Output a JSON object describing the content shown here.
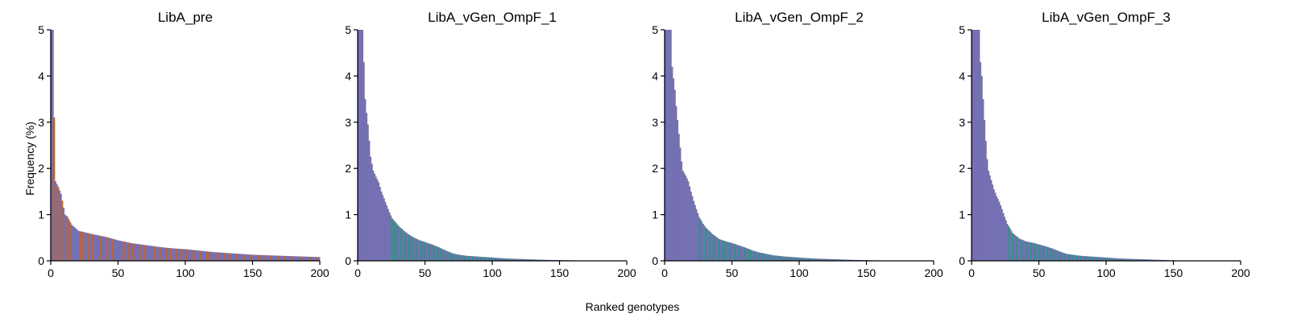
{
  "figure": {
    "xlabel": "Ranked genotypes",
    "ylabel": "Frequency (%)",
    "colors": {
      "default": "#7570b3",
      "highlight_pre": "#d95f02",
      "highlight_sel": "#1b9e77",
      "axis": "#000000"
    }
  },
  "chart_data": [
    {
      "type": "bar",
      "title": "LibA_pre",
      "xlim": [
        0,
        200
      ],
      "ylim": [
        0,
        5
      ],
      "xticks": [
        0,
        50,
        100,
        150,
        200
      ],
      "yticks": [
        0,
        1,
        2,
        3,
        4,
        5
      ],
      "highlight_color": "#d95f02",
      "n_genotypes": 200,
      "frequency_curve": [
        [
          0,
          5.0
        ],
        [
          1,
          5.0
        ],
        [
          2,
          3.1
        ],
        [
          3,
          1.72
        ],
        [
          5,
          1.6
        ],
        [
          7,
          1.45
        ],
        [
          10,
          1.0
        ],
        [
          12,
          0.95
        ],
        [
          15,
          0.78
        ],
        [
          20,
          0.65
        ],
        [
          30,
          0.58
        ],
        [
          40,
          0.52
        ],
        [
          50,
          0.44
        ],
        [
          60,
          0.38
        ],
        [
          70,
          0.34
        ],
        [
          80,
          0.3
        ],
        [
          90,
          0.27
        ],
        [
          100,
          0.25
        ],
        [
          110,
          0.22
        ],
        [
          120,
          0.19
        ],
        [
          130,
          0.17
        ],
        [
          140,
          0.15
        ],
        [
          150,
          0.13
        ],
        [
          160,
          0.12
        ],
        [
          170,
          0.11
        ],
        [
          180,
          0.1
        ],
        [
          190,
          0.09
        ],
        [
          200,
          0.08
        ]
      ],
      "highlight_ranks": [
        2,
        5,
        8,
        12,
        14,
        22,
        24,
        28,
        31,
        37,
        42,
        46,
        54,
        58,
        61,
        66,
        70,
        77,
        81,
        86,
        89,
        93,
        97,
        101,
        106,
        111,
        116,
        118,
        124,
        129,
        133,
        138,
        144,
        149,
        154,
        158,
        163,
        169,
        174,
        179,
        186,
        192,
        197
      ]
    },
    {
      "type": "bar",
      "title": "LibA_vGen_OmpF_1",
      "xlim": [
        0,
        200
      ],
      "ylim": [
        0,
        5
      ],
      "xticks": [
        0,
        50,
        100,
        150,
        200
      ],
      "yticks": [
        0,
        1,
        2,
        3,
        4,
        5
      ],
      "highlight_color": "#1b9e77",
      "n_genotypes": 165,
      "frequency_curve": [
        [
          0,
          5.0
        ],
        [
          3,
          5.0
        ],
        [
          4,
          4.3
        ],
        [
          5,
          3.5
        ],
        [
          6,
          3.2
        ],
        [
          7,
          2.95
        ],
        [
          8,
          2.6
        ],
        [
          9,
          2.25
        ],
        [
          10,
          2.1
        ],
        [
          11,
          1.95
        ],
        [
          13,
          1.82
        ],
        [
          15,
          1.7
        ],
        [
          17,
          1.5
        ],
        [
          19,
          1.35
        ],
        [
          21,
          1.2
        ],
        [
          23,
          1.05
        ],
        [
          25,
          0.92
        ],
        [
          28,
          0.82
        ],
        [
          30,
          0.75
        ],
        [
          35,
          0.62
        ],
        [
          40,
          0.52
        ],
        [
          45,
          0.45
        ],
        [
          50,
          0.4
        ],
        [
          55,
          0.35
        ],
        [
          60,
          0.29
        ],
        [
          65,
          0.22
        ],
        [
          70,
          0.16
        ],
        [
          75,
          0.13
        ],
        [
          80,
          0.11
        ],
        [
          90,
          0.09
        ],
        [
          100,
          0.07
        ],
        [
          110,
          0.05
        ],
        [
          120,
          0.04
        ],
        [
          130,
          0.03
        ],
        [
          140,
          0.02
        ],
        [
          150,
          0.015
        ],
        [
          160,
          0.01
        ],
        [
          165,
          0.005
        ]
      ],
      "highlight_ranks": [
        25,
        27,
        29,
        32,
        35,
        38,
        40,
        43,
        47,
        49,
        53,
        56,
        59,
        61,
        64,
        68,
        70,
        74,
        76,
        79,
        82,
        85,
        88,
        91,
        94,
        97,
        99,
        102,
        106,
        110,
        113,
        117,
        121,
        126,
        131,
        136,
        141,
        147,
        152
      ]
    },
    {
      "type": "bar",
      "title": "LibA_vGen_OmpF_2",
      "xlim": [
        0,
        200
      ],
      "ylim": [
        0,
        5
      ],
      "xticks": [
        0,
        50,
        100,
        150,
        200
      ],
      "yticks": [
        0,
        1,
        2,
        3,
        4,
        5
      ],
      "highlight_color": "#1b9e77",
      "n_genotypes": 160,
      "frequency_curve": [
        [
          0,
          5.0
        ],
        [
          4,
          5.0
        ],
        [
          5,
          4.2
        ],
        [
          6,
          3.95
        ],
        [
          7,
          3.7
        ],
        [
          8,
          3.35
        ],
        [
          9,
          3.05
        ],
        [
          10,
          2.75
        ],
        [
          11,
          2.45
        ],
        [
          12,
          2.15
        ],
        [
          13,
          1.95
        ],
        [
          15,
          1.85
        ],
        [
          17,
          1.72
        ],
        [
          19,
          1.5
        ],
        [
          21,
          1.3
        ],
        [
          23,
          1.12
        ],
        [
          25,
          0.95
        ],
        [
          28,
          0.8
        ],
        [
          30,
          0.72
        ],
        [
          35,
          0.58
        ],
        [
          40,
          0.47
        ],
        [
          45,
          0.42
        ],
        [
          50,
          0.38
        ],
        [
          55,
          0.33
        ],
        [
          60,
          0.28
        ],
        [
          65,
          0.22
        ],
        [
          70,
          0.18
        ],
        [
          75,
          0.15
        ],
        [
          80,
          0.12
        ],
        [
          90,
          0.09
        ],
        [
          100,
          0.07
        ],
        [
          110,
          0.05
        ],
        [
          120,
          0.04
        ],
        [
          130,
          0.03
        ],
        [
          140,
          0.02
        ],
        [
          150,
          0.015
        ],
        [
          160,
          0.005
        ]
      ],
      "highlight_ranks": [
        26,
        30,
        33,
        36,
        40,
        43,
        45,
        48,
        52,
        55,
        59,
        62,
        64,
        67,
        70,
        73,
        76,
        79,
        82,
        85,
        88,
        91,
        94,
        97,
        100,
        103,
        107,
        111,
        115,
        120,
        125,
        131,
        137,
        143,
        149
      ]
    },
    {
      "type": "bar",
      "title": "LibA_vGen_OmpF_3",
      "xlim": [
        0,
        200
      ],
      "ylim": [
        0,
        5
      ],
      "xticks": [
        0,
        50,
        100,
        150,
        200
      ],
      "yticks": [
        0,
        1,
        2,
        3,
        4,
        5
      ],
      "highlight_color": "#1b9e77",
      "n_genotypes": 155,
      "frequency_curve": [
        [
          0,
          5.0
        ],
        [
          5,
          5.0
        ],
        [
          6,
          4.3
        ],
        [
          7,
          4.0
        ],
        [
          8,
          3.5
        ],
        [
          9,
          3.05
        ],
        [
          10,
          2.6
        ],
        [
          11,
          2.2
        ],
        [
          12,
          1.95
        ],
        [
          14,
          1.75
        ],
        [
          16,
          1.55
        ],
        [
          18,
          1.4
        ],
        [
          20,
          1.28
        ],
        [
          22,
          1.12
        ],
        [
          24,
          0.95
        ],
        [
          26,
          0.8
        ],
        [
          28,
          0.7
        ],
        [
          30,
          0.6
        ],
        [
          35,
          0.48
        ],
        [
          40,
          0.42
        ],
        [
          45,
          0.39
        ],
        [
          50,
          0.35
        ],
        [
          55,
          0.31
        ],
        [
          60,
          0.26
        ],
        [
          65,
          0.2
        ],
        [
          70,
          0.15
        ],
        [
          75,
          0.13
        ],
        [
          80,
          0.11
        ],
        [
          90,
          0.09
        ],
        [
          100,
          0.07
        ],
        [
          110,
          0.05
        ],
        [
          120,
          0.04
        ],
        [
          130,
          0.03
        ],
        [
          140,
          0.02
        ],
        [
          150,
          0.01
        ],
        [
          155,
          0.005
        ]
      ],
      "highlight_ranks": [
        27,
        30,
        33,
        37,
        41,
        44,
        47,
        50,
        53,
        56,
        59,
        62,
        65,
        69,
        72,
        75,
        78,
        81,
        84,
        87,
        90,
        93,
        96,
        99,
        102,
        106,
        110,
        114,
        119,
        124,
        130,
        136,
        142,
        148
      ]
    }
  ]
}
